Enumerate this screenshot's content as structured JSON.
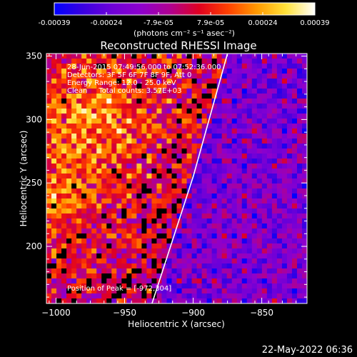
{
  "chart_data": {
    "type": "heatmap",
    "title": "Reconstructed RHESSI Image",
    "xlabel": "Heliocentric X (arcsec)",
    "ylabel": "Heliocentric Y (arcsec)",
    "xlim": [
      -1007,
      -817
    ],
    "ylim": [
      155,
      352
    ],
    "xticks": [
      -1000,
      -950,
      -900,
      -850
    ],
    "yticks": [
      200,
      250,
      300,
      350
    ],
    "colorbar": {
      "ticks": [
        "-0.00039",
        "-0.00024",
        "-7.9e-05",
        "7.9e-05",
        "0.00024",
        "0.00039"
      ],
      "unit_label": "(photons cm⁻² s⁻¹ asec⁻²)",
      "range": [
        -0.00039,
        0.00039
      ],
      "colormap": [
        "#0000ff",
        "#3a00e0",
        "#6e00d8",
        "#8e00cc",
        "#b00090",
        "#e00020",
        "#ff4000",
        "#ff9a00",
        "#ffe23a",
        "#ffffff"
      ]
    },
    "annotations": {
      "time_range": "28-Jun-2015 07:49:56.000 to 07:52:36.000",
      "detectors": "Detectors: 3F 5F 6F 7F 8F 9F, Att 0",
      "energy": "Energy Range: 12.0 - 25.0 keV",
      "clean": "Clean     Total counts: 3.57E+03",
      "peak": "Position of Peak = [-972,304]"
    },
    "peak_position": [
      -972,
      304
    ],
    "limb_line": [
      [
        -930,
        155
      ],
      [
        -900,
        255
      ],
      [
        -875,
        352
      ]
    ]
  },
  "footer": {
    "timestamp": "22-May-2022 06:36"
  },
  "colors": {
    "background": "#000000",
    "text": "#ffffff"
  }
}
